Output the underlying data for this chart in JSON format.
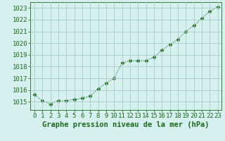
{
  "x": [
    0,
    1,
    2,
    3,
    4,
    5,
    6,
    7,
    8,
    9,
    10,
    11,
    12,
    13,
    14,
    15,
    16,
    17,
    18,
    19,
    20,
    21,
    22,
    23
  ],
  "y": [
    1015.6,
    1015.1,
    1014.8,
    1015.1,
    1015.1,
    1015.2,
    1015.3,
    1015.5,
    1016.1,
    1016.6,
    1017.0,
    1018.3,
    1018.5,
    1018.5,
    1018.5,
    1018.8,
    1019.4,
    1019.9,
    1020.3,
    1021.0,
    1021.5,
    1022.1,
    1022.7,
    1023.1
  ],
  "line_color": "#1a6b1a",
  "marker": "D",
  "marker_size": 2.5,
  "bg_color": "#d6f0f0",
  "grid_color": "#aacccc",
  "xlabel": "Graphe pression niveau de la mer (hPa)",
  "xlabel_color": "#1a6b1a",
  "xlabel_fontsize": 7.5,
  "tick_fontsize": 6.5,
  "ylim": [
    1014.3,
    1023.5
  ],
  "xlim": [
    -0.5,
    23.5
  ],
  "yticks": [
    1015,
    1016,
    1017,
    1018,
    1019,
    1020,
    1021,
    1022,
    1023
  ],
  "xticks": [
    0,
    1,
    2,
    3,
    4,
    5,
    6,
    7,
    8,
    9,
    10,
    11,
    12,
    13,
    14,
    15,
    16,
    17,
    18,
    19,
    20,
    21,
    22,
    23
  ]
}
